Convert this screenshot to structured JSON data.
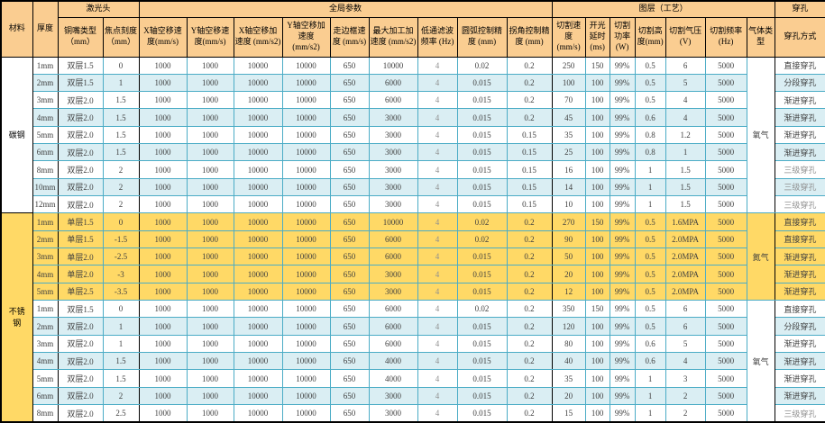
{
  "palette": {
    "header_bg": "#FACD91",
    "alt_row_bg": "#DAEEF3",
    "nitrogen_section_bg": "#FFD966",
    "cut_speed_col_bg": "#A9D08E",
    "grid_border": "#4BACC6",
    "outer_border": "#000000",
    "muted_text": "#8f8f8f"
  },
  "table": {
    "group_headers": [
      {
        "label": "材料",
        "colspan": 1,
        "rowspan": 2
      },
      {
        "label": "厚度",
        "colspan": 1,
        "rowspan": 2
      },
      {
        "label": "激光头",
        "colspan": 2,
        "rowspan": 1
      },
      {
        "label": "全局参数",
        "colspan": 9,
        "rowspan": 1
      },
      {
        "label": "图层（工艺）",
        "colspan": 7,
        "rowspan": 1
      },
      {
        "label": "穿孔",
        "colspan": 1,
        "rowspan": 1
      }
    ],
    "column_headers": [
      "铜嘴类型（mm）",
      "焦点刻度（mm）",
      "X轴空移速度(mm/s)",
      "Y轴空移速度(mm/s)",
      "X轴空移加速度 (mm/s2)",
      "Y轴空移加速度 (mm/s2)",
      "走边框速度 (mm/s)",
      "最大加工加速度 (mm/s2)",
      "低通滤波频率 (Hz)",
      "圆弧控制精度 (mm)",
      "拐角控制精度 (mm)",
      "切割速度 (mm/s)",
      "开光延时 (ms)",
      "切割功率 (W)",
      "切割高度(mm)",
      "切割气压 (V)",
      "切割频率 (Hz)",
      "气体类型",
      "穿孔方式"
    ],
    "column_keys": [
      "thickness",
      "nozzle",
      "focal",
      "x_speed",
      "y_speed",
      "x_acc",
      "y_acc",
      "frame_speed",
      "max_acc",
      "lowpass_hz",
      "arc_precision",
      "corner_precision",
      "cut_speed",
      "laser_on_delay",
      "cut_power",
      "cut_height",
      "cut_pressure",
      "cut_freq"
    ],
    "defaults": {
      "x_speed": "1000",
      "y_speed": "1000",
      "x_acc": "10000",
      "y_acc": "10000",
      "frame_speed": "650",
      "lowpass_hz": "4",
      "cut_power": "99%",
      "cut_freq": "5000"
    },
    "material_spans": [
      {
        "label": "碳钢",
        "start": 0,
        "span": 9
      },
      {
        "label": "不锈钢",
        "start": 9,
        "span": 12
      }
    ],
    "gas_spans": [
      {
        "label": "氧气",
        "start": 0,
        "span": 9,
        "style": "gasW"
      },
      {
        "label": "氮气",
        "start": 9,
        "span": 5,
        "style": "gasY"
      },
      {
        "label": "氧气",
        "start": 14,
        "span": 7,
        "style": "gasW"
      }
    ],
    "rows": [
      {
        "thickness": "1mm",
        "nozzle": "双层1.5",
        "focal": "0",
        "max_acc": "10000",
        "arc_precision": "0.02",
        "corner_precision": "0.2",
        "cut_speed": "250",
        "laser_on_delay": "150",
        "cut_height": "0.5",
        "cut_pressure": "6",
        "pierce": "直接穿孔",
        "row_style": "white"
      },
      {
        "thickness": "2mm",
        "nozzle": "双层1.5",
        "focal": "1",
        "max_acc": "6000",
        "arc_precision": "0.015",
        "corner_precision": "0.2",
        "cut_speed": "100",
        "laser_on_delay": "100",
        "cut_height": "0.5",
        "cut_pressure": "5",
        "pierce": "分段穿孔",
        "row_style": "blue"
      },
      {
        "thickness": "3mm",
        "nozzle": "双层2.0",
        "focal": "1.5",
        "max_acc": "6000",
        "arc_precision": "0.015",
        "corner_precision": "0.2",
        "cut_speed": "70",
        "laser_on_delay": "100",
        "cut_height": "0.5",
        "cut_pressure": "4",
        "pierce": "渐进穿孔",
        "row_style": "white"
      },
      {
        "thickness": "4mm",
        "nozzle": "双层2.0",
        "focal": "1.5",
        "max_acc": "3000",
        "arc_precision": "0.015",
        "corner_precision": "0.2",
        "cut_speed": "45",
        "laser_on_delay": "100",
        "cut_height": "0.6",
        "cut_pressure": "4",
        "pierce": "渐进穿孔",
        "row_style": "blue"
      },
      {
        "thickness": "5mm",
        "nozzle": "双层2.0",
        "focal": "1.5",
        "max_acc": "3000",
        "arc_precision": "0.015",
        "corner_precision": "0.15",
        "cut_speed": "35",
        "laser_on_delay": "100",
        "cut_height": "0.8",
        "cut_pressure": "1.2",
        "pierce": "渐进穿孔",
        "row_style": "white"
      },
      {
        "thickness": "6mm",
        "nozzle": "双层2.0",
        "focal": "1.5",
        "max_acc": "3000",
        "arc_precision": "0.015",
        "corner_precision": "0.15",
        "cut_speed": "25",
        "laser_on_delay": "100",
        "cut_height": "0.8",
        "cut_pressure": "1",
        "pierce": "渐进穿孔",
        "row_style": "blue"
      },
      {
        "thickness": "8mm",
        "nozzle": "双层2.0",
        "focal": "2",
        "max_acc": "3000",
        "arc_precision": "0.015",
        "corner_precision": "0.15",
        "cut_speed": "16",
        "laser_on_delay": "100",
        "cut_height": "1",
        "cut_pressure": "1.5",
        "pierce": "三级穿孔",
        "pierce_muted": true,
        "row_style": "white"
      },
      {
        "thickness": "10mm",
        "nozzle": "双层2.0",
        "focal": "2",
        "max_acc": "3000",
        "arc_precision": "0.015",
        "corner_precision": "0.15",
        "cut_speed": "14",
        "laser_on_delay": "100",
        "cut_height": "1",
        "cut_pressure": "1.5",
        "pierce": "三级穿孔",
        "pierce_muted": true,
        "row_style": "blue"
      },
      {
        "thickness": "12mm",
        "nozzle": "双层2.0",
        "focal": "2",
        "max_acc": "3000",
        "arc_precision": "0.015",
        "corner_precision": "0.15",
        "cut_speed": "10",
        "laser_on_delay": "100",
        "cut_height": "1",
        "cut_pressure": "1.5",
        "pierce": "三级穿孔",
        "pierce_muted": true,
        "row_style": "white"
      },
      {
        "thickness": "1mm",
        "nozzle": "单层1.5",
        "focal": "0",
        "max_acc": "10000",
        "arc_precision": "0.02",
        "corner_precision": "0.2",
        "cut_speed": "270",
        "laser_on_delay": "150",
        "cut_height": "0.5",
        "cut_pressure": "1.6MPA",
        "pierce": "直接穿孔",
        "row_style": "yellow",
        "section_start": true
      },
      {
        "thickness": "2mm",
        "nozzle": "单层1.5",
        "focal": "-1.5",
        "max_acc": "6000",
        "arc_precision": "0.02",
        "corner_precision": "0.2",
        "cut_speed": "90",
        "laser_on_delay": "100",
        "cut_height": "0.5",
        "cut_pressure": "2.0MPA",
        "pierce": "直接穿孔",
        "row_style": "yellow"
      },
      {
        "thickness": "3mm",
        "nozzle": "单层2.0",
        "focal": "-2.5",
        "max_acc": "6000",
        "arc_precision": "0.015",
        "corner_precision": "0.2",
        "cut_speed": "50",
        "laser_on_delay": "100",
        "cut_height": "0.5",
        "cut_pressure": "2.0MPA",
        "pierce": "渐进穿孔",
        "row_style": "yellow"
      },
      {
        "thickness": "4mm",
        "nozzle": "单层2.0",
        "focal": "-3",
        "max_acc": "3000",
        "arc_precision": "0.015",
        "corner_precision": "0.2",
        "cut_speed": "20",
        "laser_on_delay": "100",
        "cut_height": "0.5",
        "cut_pressure": "2.0MPA",
        "pierce": "渐进穿孔",
        "row_style": "yellow"
      },
      {
        "thickness": "5mm",
        "nozzle": "单层2.5",
        "focal": "-3.5",
        "max_acc": "3000",
        "arc_precision": "0.015",
        "corner_precision": "0.2",
        "cut_speed": "12",
        "laser_on_delay": "100",
        "cut_height": "0.5",
        "cut_pressure": "2.0MPA",
        "pierce": "渐进穿孔",
        "row_style": "yellow"
      },
      {
        "thickness": "1mm",
        "nozzle": "双层1.5",
        "focal": "0",
        "max_acc": "6000",
        "arc_precision": "0.02",
        "corner_precision": "0.2",
        "cut_speed": "350",
        "laser_on_delay": "150",
        "cut_height": "0.5",
        "cut_pressure": "6",
        "pierce": "直接穿孔",
        "row_style": "white",
        "section_start": true
      },
      {
        "thickness": "2mm",
        "nozzle": "双层2.0",
        "focal": "1",
        "max_acc": "6000",
        "arc_precision": "0.015",
        "corner_precision": "0.2",
        "cut_speed": "120",
        "laser_on_delay": "100",
        "cut_height": "0.5",
        "cut_pressure": "6",
        "pierce": "分段穿孔",
        "row_style": "blue"
      },
      {
        "thickness": "3mm",
        "nozzle": "双层2.0",
        "focal": "1",
        "max_acc": "6000",
        "arc_precision": "0.015",
        "corner_precision": "0.2",
        "cut_speed": "80",
        "laser_on_delay": "100",
        "cut_height": "0.6",
        "cut_pressure": "5",
        "pierce": "渐进穿孔",
        "row_style": "white"
      },
      {
        "thickness": "4mm",
        "nozzle": "双层2.0",
        "focal": "1.5",
        "max_acc": "4000",
        "arc_precision": "0.015",
        "corner_precision": "0.2",
        "cut_speed": "40",
        "laser_on_delay": "100",
        "cut_height": "0.6",
        "cut_pressure": "4",
        "pierce": "渐进穿孔",
        "row_style": "blue"
      },
      {
        "thickness": "5mm",
        "nozzle": "双层2.0",
        "focal": "1.5",
        "max_acc": "4000",
        "arc_precision": "0.015",
        "corner_precision": "0.2",
        "cut_speed": "35",
        "laser_on_delay": "100",
        "cut_height": "1",
        "cut_pressure": "3",
        "pierce": "渐进穿孔",
        "row_style": "white"
      },
      {
        "thickness": "6mm",
        "nozzle": "双层2.0",
        "focal": "2",
        "max_acc": "3000",
        "arc_precision": "0.015",
        "corner_precision": "0.2",
        "cut_speed": "20",
        "laser_on_delay": "100",
        "cut_height": "1",
        "cut_pressure": "2",
        "pierce": "渐进穿孔",
        "row_style": "blue"
      },
      {
        "thickness": "8mm",
        "nozzle": "双层2.0",
        "focal": "2.5",
        "max_acc": "3000",
        "arc_precision": "0.015",
        "corner_precision": "0.2",
        "cut_speed": "15",
        "laser_on_delay": "100",
        "cut_height": "1",
        "cut_pressure": "2",
        "pierce": "三级穿孔",
        "pierce_muted": true,
        "row_style": "white"
      }
    ]
  }
}
